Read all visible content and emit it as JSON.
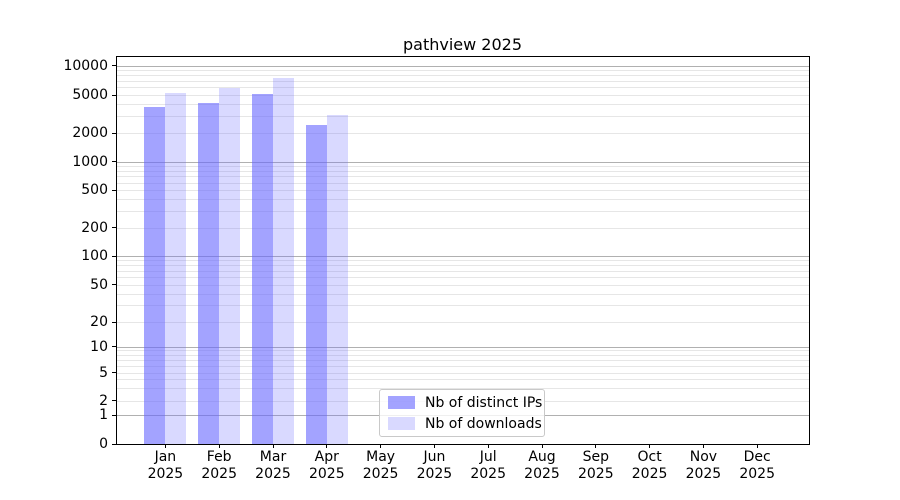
{
  "chart_data": {
    "type": "bar",
    "title": "pathview 2025",
    "categories": [
      "Jan 2025",
      "Feb 2025",
      "Mar 2025",
      "Apr 2025",
      "May 2025",
      "Jun 2025",
      "Jul 2025",
      "Aug 2025",
      "Sep 2025",
      "Oct 2025",
      "Nov 2025",
      "Dec 2025"
    ],
    "series": [
      {
        "name": "Nb of distinct IPs",
        "color": "#6666ff",
        "opacity": 0.6,
        "values": [
          3790,
          4170,
          5180,
          2410,
          null,
          null,
          null,
          null,
          null,
          null,
          null,
          null
        ]
      },
      {
        "name": "Nb of downloads",
        "color": "#6666ff",
        "opacity": 0.25,
        "values": [
          5300,
          5920,
          7490,
          3120,
          null,
          null,
          null,
          null,
          null,
          null,
          null,
          null
        ]
      }
    ],
    "y_ticks": [
      0,
      1,
      2,
      5,
      10,
      20,
      50,
      100,
      200,
      500,
      1000,
      2000,
      5000,
      10000
    ],
    "y_scale": "log-like with zero baseline (symlog)",
    "ylim": [
      0,
      12000
    ],
    "grid": {
      "major": true,
      "minor": true,
      "major_color": "#b0b0b0",
      "minor_color": "#e6e6e6"
    },
    "legend": {
      "position": "lower-center-inside"
    },
    "spine_color": "#000000"
  }
}
